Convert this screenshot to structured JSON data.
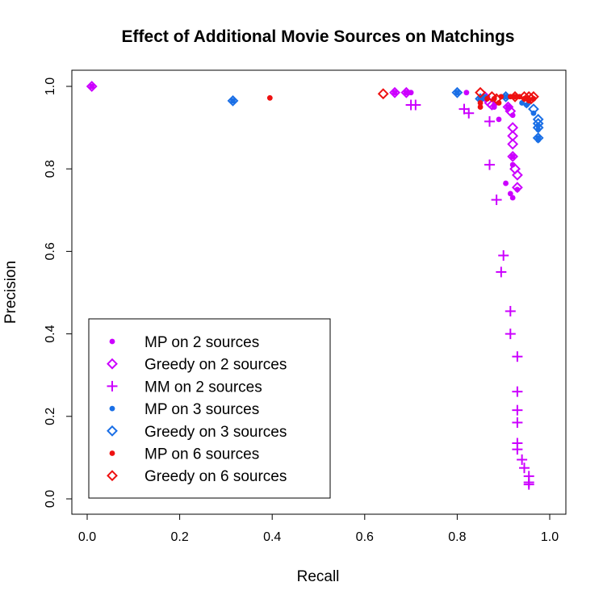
{
  "chart_data": {
    "type": "scatter",
    "title": "Effect of Additional Movie Sources on Matchings",
    "xlabel": "Recall",
    "ylabel": "Precision",
    "xlim": [
      0.0,
      1.0
    ],
    "ylim": [
      0.0,
      1.0
    ],
    "xticks": [
      "0.0",
      "0.2",
      "0.4",
      "0.6",
      "0.8",
      "1.0"
    ],
    "yticks": [
      "0.0",
      "0.2",
      "0.4",
      "0.6",
      "0.8",
      "1.0"
    ],
    "grid": false,
    "legend_position": "bottom-left",
    "series": [
      {
        "name": "MP on 2 sources",
        "marker": "dot",
        "color": "#cc00ff",
        "points": [
          [
            0.01,
            1.0
          ],
          [
            0.665,
            0.985
          ],
          [
            0.69,
            0.985
          ],
          [
            0.7,
            0.985
          ],
          [
            0.82,
            0.985
          ],
          [
            0.85,
            0.97
          ],
          [
            0.88,
            0.95
          ],
          [
            0.89,
            0.92
          ],
          [
            0.91,
            0.95
          ],
          [
            0.92,
            0.93
          ],
          [
            0.92,
            0.83
          ],
          [
            0.92,
            0.81
          ],
          [
            0.905,
            0.765
          ],
          [
            0.915,
            0.74
          ],
          [
            0.92,
            0.73
          ],
          [
            0.93,
            0.75
          ],
          [
            0.88,
            0.955
          ]
        ]
      },
      {
        "name": "Greedy on 2 sources",
        "marker": "diamond",
        "color": "#cc00ff",
        "points": [
          [
            0.01,
            1.0
          ],
          [
            0.665,
            0.985
          ],
          [
            0.69,
            0.985
          ],
          [
            0.86,
            0.975
          ],
          [
            0.87,
            0.96
          ],
          [
            0.875,
            0.955
          ],
          [
            0.91,
            0.95
          ],
          [
            0.915,
            0.94
          ],
          [
            0.92,
            0.9
          ],
          [
            0.92,
            0.88
          ],
          [
            0.92,
            0.86
          ],
          [
            0.92,
            0.83
          ],
          [
            0.925,
            0.8
          ],
          [
            0.93,
            0.785
          ],
          [
            0.93,
            0.755
          ]
        ]
      },
      {
        "name": "MM on 2 sources",
        "marker": "plus",
        "color": "#cc00ff",
        "points": [
          [
            0.7,
            0.955
          ],
          [
            0.71,
            0.955
          ],
          [
            0.815,
            0.945
          ],
          [
            0.825,
            0.935
          ],
          [
            0.87,
            0.915
          ],
          [
            0.87,
            0.81
          ],
          [
            0.885,
            0.725
          ],
          [
            0.9,
            0.59
          ],
          [
            0.895,
            0.55
          ],
          [
            0.915,
            0.455
          ],
          [
            0.915,
            0.4
          ],
          [
            0.93,
            0.345
          ],
          [
            0.93,
            0.26
          ],
          [
            0.93,
            0.215
          ],
          [
            0.93,
            0.185
          ],
          [
            0.93,
            0.135
          ],
          [
            0.93,
            0.12
          ],
          [
            0.94,
            0.095
          ],
          [
            0.945,
            0.075
          ],
          [
            0.955,
            0.055
          ],
          [
            0.955,
            0.04
          ],
          [
            0.955,
            0.035
          ]
        ]
      },
      {
        "name": "MP on 3 sources",
        "marker": "dot",
        "color": "#1a6fe6",
        "points": [
          [
            0.315,
            0.965
          ],
          [
            0.8,
            0.985
          ],
          [
            0.85,
            0.97
          ],
          [
            0.86,
            0.975
          ],
          [
            0.905,
            0.975
          ],
          [
            0.94,
            0.96
          ],
          [
            0.95,
            0.955
          ],
          [
            0.965,
            0.935
          ],
          [
            0.975,
            0.905
          ],
          [
            0.975,
            0.895
          ],
          [
            0.975,
            0.875
          ],
          [
            0.975,
            0.87
          ]
        ]
      },
      {
        "name": "Greedy on 3 sources",
        "marker": "diamond",
        "color": "#1a6fe6",
        "points": [
          [
            0.315,
            0.965
          ],
          [
            0.8,
            0.985
          ],
          [
            0.85,
            0.97
          ],
          [
            0.905,
            0.975
          ],
          [
            0.95,
            0.96
          ],
          [
            0.965,
            0.945
          ],
          [
            0.975,
            0.92
          ],
          [
            0.975,
            0.91
          ],
          [
            0.975,
            0.9
          ],
          [
            0.975,
            0.875
          ]
        ]
      },
      {
        "name": "MP on 6 sources",
        "marker": "dot",
        "color": "#ee1111",
        "points": [
          [
            0.395,
            0.972
          ],
          [
            0.85,
            0.96
          ],
          [
            0.85,
            0.95
          ],
          [
            0.865,
            0.97
          ],
          [
            0.88,
            0.97
          ],
          [
            0.89,
            0.96
          ],
          [
            0.895,
            0.975
          ],
          [
            0.915,
            0.975
          ],
          [
            0.925,
            0.975
          ],
          [
            0.935,
            0.975
          ],
          [
            0.945,
            0.97
          ],
          [
            0.95,
            0.97
          ],
          [
            0.955,
            0.965
          ],
          [
            0.965,
            0.97
          ]
        ]
      },
      {
        "name": "Greedy on 6 sources",
        "marker": "diamond",
        "color": "#ee1111",
        "points": [
          [
            0.64,
            0.982
          ],
          [
            0.85,
            0.985
          ],
          [
            0.875,
            0.975
          ],
          [
            0.885,
            0.97
          ],
          [
            0.925,
            0.975
          ],
          [
            0.945,
            0.975
          ],
          [
            0.955,
            0.975
          ],
          [
            0.96,
            0.97
          ],
          [
            0.965,
            0.975
          ]
        ]
      }
    ]
  }
}
